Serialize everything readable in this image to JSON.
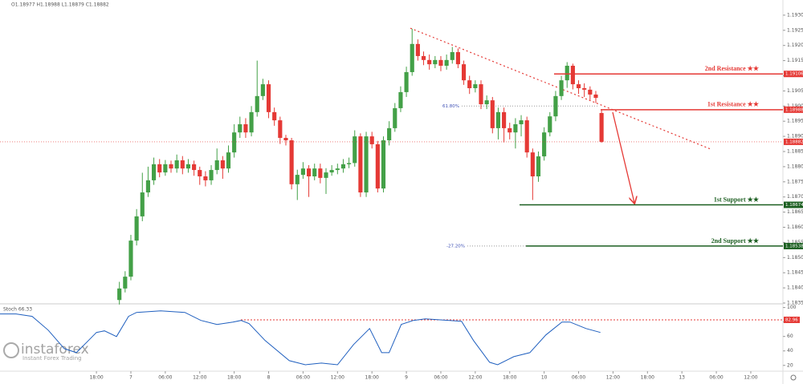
{
  "chart_data": [
    {
      "type": "candlestick",
      "header": "O1.18977 H1.18988 L1.18879 C1.18882",
      "xlim": [
        -20.8,
        115.6
      ],
      "xticks": [
        {
          "value": -4,
          "label": "18:00"
        },
        {
          "value": 2,
          "label": "7"
        },
        {
          "value": 8,
          "label": "06:00"
        },
        {
          "value": 14,
          "label": "12:00"
        },
        {
          "value": 20,
          "label": "18:00"
        },
        {
          "value": 26,
          "label": "8"
        },
        {
          "value": 32,
          "label": "06:00"
        },
        {
          "value": 38,
          "label": "12:00"
        },
        {
          "value": 44,
          "label": "18:00"
        },
        {
          "value": 50,
          "label": "9"
        },
        {
          "value": 56,
          "label": "06:00"
        },
        {
          "value": 62,
          "label": "12:00"
        },
        {
          "value": 68,
          "label": "18:00"
        },
        {
          "value": 74,
          "label": "10"
        },
        {
          "value": 80,
          "label": "06:00"
        },
        {
          "value": 86,
          "label": "12:00"
        },
        {
          "value": 92,
          "label": "18:00"
        },
        {
          "value": 98,
          "label": "13"
        },
        {
          "value": 104,
          "label": "06:00"
        },
        {
          "value": 110,
          "label": "12:00"
        }
      ],
      "ylim": [
        1.1835,
        1.1935
      ],
      "yticks": [
        {
          "value": 1.1835,
          "label": "1.18350"
        },
        {
          "value": 1.184,
          "label": "1.18400"
        },
        {
          "value": 1.1845,
          "label": "1.18450"
        },
        {
          "value": 1.185,
          "label": "1.18500"
        },
        {
          "value": 1.1855,
          "label": "1.18550"
        },
        {
          "value": 1.186,
          "label": "1.18600"
        },
        {
          "value": 1.1865,
          "label": "1.18650"
        },
        {
          "value": 1.187,
          "label": "1.18700"
        },
        {
          "value": 1.1875,
          "label": "1.18750"
        },
        {
          "value": 1.188,
          "label": "1.18800"
        },
        {
          "value": 1.1885,
          "label": "1.18850"
        },
        {
          "value": 1.189,
          "label": "1.18900"
        },
        {
          "value": 1.1895,
          "label": "1.18950"
        },
        {
          "value": 1.19,
          "label": "1.19000"
        },
        {
          "value": 1.1905,
          "label": "1.19050"
        },
        {
          "value": 1.191,
          "label": "1.19100"
        },
        {
          "value": 1.1915,
          "label": "1.19150"
        },
        {
          "value": 1.192,
          "label": "1.19200"
        },
        {
          "value": 1.1925,
          "label": "1.19250"
        },
        {
          "value": 1.193,
          "label": "1.19300"
        }
      ],
      "up_color": "#43a047",
      "down_color": "#e53935",
      "open": [
        1.1836,
        1.18398,
        1.18437,
        1.18556,
        1.18636,
        1.18715,
        1.18755,
        1.18808,
        1.18781,
        1.18808,
        1.18794,
        1.18821,
        1.18794,
        1.18808,
        1.18789,
        1.18768,
        1.18755,
        1.18789,
        1.18821,
        1.18794,
        1.18847,
        1.18913,
        1.1894,
        1.18913,
        1.1898,
        1.19033,
        1.19072,
        1.1898,
        1.18953,
        1.18895,
        1.18887,
        1.18742,
        1.18773,
        1.18794,
        1.18768,
        1.18794,
        1.18763,
        1.18781,
        1.18789,
        1.18794,
        1.18808,
        1.18812,
        1.189,
        1.18715,
        1.189,
        1.18874,
        1.18728,
        1.18887,
        1.18927,
        1.18993,
        1.19046,
        1.19112,
        1.19205,
        1.19165,
        1.19152,
        1.19138,
        1.19152,
        1.19133,
        1.19152,
        1.19178,
        1.19138,
        1.19085,
        1.19059,
        1.19072,
        1.19006,
        1.19019,
        1.18927,
        1.1898,
        1.18927,
        1.18913,
        1.1894,
        1.18953,
        1.18847,
        1.18768,
        1.18834,
        1.18913,
        1.18966,
        1.19033,
        1.19085,
        1.19133,
        1.19072,
        1.19059,
        1.19054,
        1.19038,
        1.18977
      ],
      "high": [
        1.1842,
        1.18455,
        1.18575,
        1.1866,
        1.1878,
        1.188,
        1.1883,
        1.18825,
        1.18822,
        1.1882,
        1.1884,
        1.18835,
        1.18825,
        1.1882,
        1.188,
        1.18785,
        1.18805,
        1.1886,
        1.18835,
        1.1887,
        1.1894,
        1.18965,
        1.1896,
        1.19,
        1.1915,
        1.1909,
        1.19085,
        1.18995,
        1.18965,
        1.18905,
        1.18895,
        1.1879,
        1.18815,
        1.18805,
        1.1881,
        1.1881,
        1.18795,
        1.18805,
        1.1881,
        1.18825,
        1.1883,
        1.1892,
        1.1891,
        1.18915,
        1.18915,
        1.18885,
        1.189,
        1.1895,
        1.1901,
        1.19065,
        1.1913,
        1.19255,
        1.1922,
        1.1918,
        1.1917,
        1.19165,
        1.19165,
        1.1917,
        1.19195,
        1.1919,
        1.1915,
        1.191,
        1.19085,
        1.19085,
        1.19035,
        1.1903,
        1.18995,
        1.18995,
        1.18945,
        1.1896,
        1.1897,
        1.18965,
        1.1886,
        1.1885,
        1.1893,
        1.1898,
        1.1905,
        1.191,
        1.19145,
        1.1914,
        1.19085,
        1.19075,
        1.19065,
        1.1905,
        1.18988
      ],
      "low": [
        1.18345,
        1.18385,
        1.18425,
        1.1854,
        1.1862,
        1.187,
        1.1874,
        1.18765,
        1.1877,
        1.1878,
        1.1878,
        1.18775,
        1.1878,
        1.1877,
        1.1874,
        1.18735,
        1.1874,
        1.18775,
        1.1876,
        1.1878,
        1.1883,
        1.18895,
        1.18895,
        1.189,
        1.18965,
        1.1902,
        1.1896,
        1.18935,
        1.18875,
        1.1887,
        1.18725,
        1.1869,
        1.1876,
        1.187,
        1.18755,
        1.18745,
        1.1871,
        1.1877,
        1.18775,
        1.1878,
        1.18795,
        1.188,
        1.187,
        1.187,
        1.1886,
        1.18715,
        1.18715,
        1.1887,
        1.18915,
        1.1898,
        1.1903,
        1.191,
        1.1915,
        1.19135,
        1.1912,
        1.19125,
        1.19115,
        1.1912,
        1.1914,
        1.19125,
        1.1907,
        1.1904,
        1.19045,
        1.1899,
        1.1899,
        1.1891,
        1.1889,
        1.1888,
        1.1889,
        1.1886,
        1.189,
        1.1883,
        1.1869,
        1.1875,
        1.1882,
        1.189,
        1.1895,
        1.1902,
        1.1906,
        1.19055,
        1.1904,
        1.1903,
        1.1902,
        1.1901,
        1.18879
      ],
      "close": [
        1.18398,
        1.18437,
        1.18556,
        1.18636,
        1.18715,
        1.18755,
        1.18808,
        1.18781,
        1.18808,
        1.18794,
        1.18821,
        1.18794,
        1.18808,
        1.18789,
        1.18768,
        1.18755,
        1.18789,
        1.18821,
        1.18794,
        1.18847,
        1.18913,
        1.1894,
        1.18913,
        1.1898,
        1.19033,
        1.19072,
        1.1898,
        1.18953,
        1.18895,
        1.18887,
        1.18742,
        1.18773,
        1.18794,
        1.18768,
        1.18794,
        1.18763,
        1.18781,
        1.18789,
        1.18794,
        1.18808,
        1.18812,
        1.189,
        1.18715,
        1.189,
        1.18874,
        1.18728,
        1.18887,
        1.18927,
        1.18993,
        1.19046,
        1.19112,
        1.19205,
        1.19165,
        1.19152,
        1.19138,
        1.19152,
        1.19133,
        1.19152,
        1.19178,
        1.19138,
        1.19085,
        1.19059,
        1.19072,
        1.19006,
        1.19019,
        1.18927,
        1.1898,
        1.18927,
        1.18913,
        1.1894,
        1.18953,
        1.18847,
        1.18768,
        1.18834,
        1.18913,
        1.18966,
        1.19033,
        1.19085,
        1.19133,
        1.19072,
        1.19059,
        1.19054,
        1.19038,
        1.19027,
        1.18882
      ],
      "levels": [
        {
          "name": "2nd Resistance ★★",
          "value": 1.19106,
          "color": "#e53935"
        },
        {
          "name": "1st Resistance ★★",
          "value": 1.18988,
          "color": "#e53935"
        },
        {
          "name": "1st Support ★★",
          "value": 1.18674,
          "color": "#1b5e20"
        },
        {
          "name": "2nd Support ★★",
          "value": 1.18538,
          "color": "#1b5e20"
        }
      ],
      "current": {
        "value": 1.18882,
        "color": "#e53935"
      },
      "fib_levels": [
        {
          "name": "61.80%",
          "value": 1.19
        },
        {
          "name": "-27.20%",
          "value": 1.18538
        }
      ],
      "trendline": {
        "x": [
          50.7,
          103
        ],
        "y": [
          1.19257,
          1.18858
        ],
        "color": "#e53935"
      }
    },
    {
      "type": "line",
      "title": "Stoch 66.33",
      "color": "#1f5fbf",
      "ylim": [
        12,
        104
      ],
      "yticks": [
        20,
        40,
        60,
        80,
        100
      ],
      "level": {
        "value": 82.96,
        "color": "#e53935"
      },
      "x": [
        -20.8,
        -18,
        -15.2,
        -12.4,
        -9.6,
        -7.5,
        -5.4,
        -4,
        -2.6,
        -0.5,
        1.6,
        3,
        7.2,
        11.4,
        14.2,
        17,
        19.8,
        21.2,
        22.6,
        25.4,
        29.6,
        32.4,
        35.2,
        38,
        40.8,
        43.6,
        45.7,
        47,
        49.1,
        51.2,
        53.3,
        57.5,
        59.6,
        61.7,
        64.5,
        65.9,
        68.7,
        71.5,
        74.3,
        77.1,
        78.5,
        81.3,
        83.8
      ],
      "values": [
        91.1,
        91.1,
        87.8,
        68.8,
        43.2,
        37.6,
        54.3,
        65.5,
        67.7,
        59.9,
        87.8,
        93.3,
        95.5,
        93.3,
        82.2,
        76.6,
        80,
        82.2,
        77.7,
        54.3,
        26.5,
        20.9,
        23.2,
        20.9,
        48.8,
        71,
        37.6,
        37.6,
        76.6,
        82.2,
        84.4,
        82.2,
        81.1,
        54.3,
        24.3,
        20.9,
        32.1,
        37.6,
        62.1,
        80,
        80,
        71,
        65.5
      ]
    }
  ],
  "watermark": {
    "brand": "instaforex",
    "tagline": "Instant Forex Trading"
  }
}
